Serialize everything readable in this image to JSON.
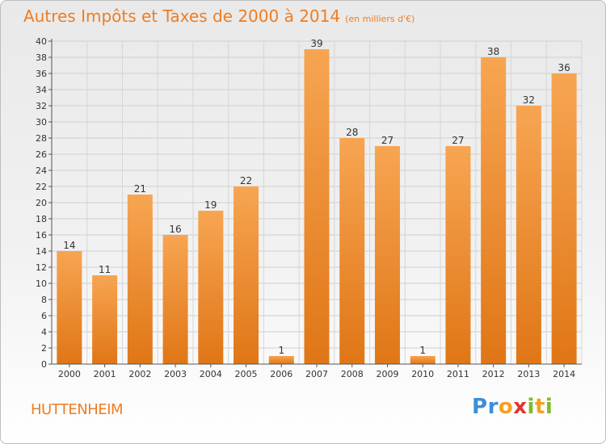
{
  "title": "Autres Impôts et Taxes de 2000 à 2014",
  "unit_note": "(en milliers d'€)",
  "commune": "HUTTENHEIM",
  "logo": {
    "letters": [
      "P",
      "r",
      "o",
      "x",
      "i",
      "t",
      "i"
    ],
    "colors": [
      "#3c8ed9",
      "#3c8ed9",
      "#f6a11e",
      "#e5342b",
      "#7cbc2b",
      "#f6a11e",
      "#7cbc2b"
    ]
  },
  "colors": {
    "accent": "#ee7d22",
    "bar_light": "#f7a552",
    "bar_dark": "#e07616"
  },
  "chart_data": {
    "type": "bar",
    "title": "Autres Impôts et Taxes de 2000 à 2014",
    "categories": [
      "2000",
      "2001",
      "2002",
      "2003",
      "2004",
      "2005",
      "2006",
      "2007",
      "2008",
      "2009",
      "2010",
      "2011",
      "2012",
      "2013",
      "2014"
    ],
    "values": [
      14,
      11,
      21,
      16,
      19,
      22,
      1,
      39,
      28,
      27,
      1,
      27,
      38,
      32,
      36
    ],
    "ylim": [
      0,
      40
    ],
    "yticks": [
      0,
      2,
      4,
      6,
      8,
      10,
      12,
      14,
      16,
      18,
      20,
      22,
      24,
      26,
      28,
      30,
      32,
      34,
      36,
      38,
      40
    ],
    "grid": true,
    "data_labels": true
  }
}
